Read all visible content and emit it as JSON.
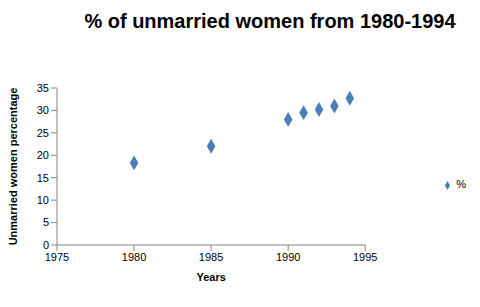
{
  "chart_data": {
    "type": "scatter",
    "title": "% of unmarried women from 1980-1994",
    "x_label": "Years",
    "y_label": "Unmarried women percentage",
    "x": [
      1980,
      1985,
      1990,
      1991,
      1992,
      1993,
      1994
    ],
    "series": [
      {
        "name": "%",
        "color": "#4a7ebb",
        "marker": "diamond",
        "values": [
          18.3,
          22,
          28,
          29.5,
          30.2,
          31,
          32.7
        ]
      }
    ],
    "xlim": [
      1975,
      1995
    ],
    "ylim": [
      0,
      35
    ],
    "xticks": [
      1975,
      1980,
      1985,
      1990,
      1995
    ],
    "yticks": [
      0,
      5,
      10,
      15,
      20,
      25,
      30,
      35
    ],
    "grid": false,
    "legend": "right"
  }
}
